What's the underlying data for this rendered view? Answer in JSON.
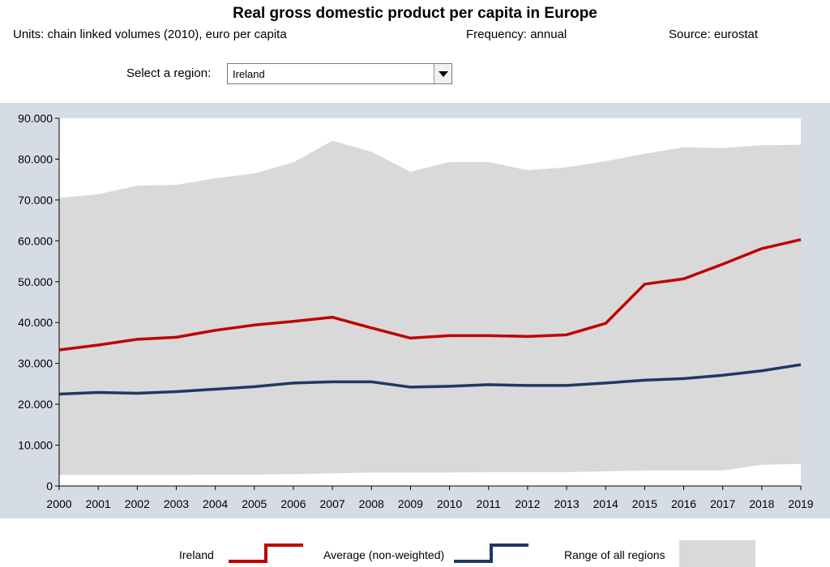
{
  "title": "Real gross domestic product per capita in Europe",
  "meta": {
    "units": "Units: chain linked volumes (2010), euro per capita",
    "frequency": "Frequency: annual",
    "source": "Source: eurostat"
  },
  "selector": {
    "label": "Select a region:",
    "value": "Ireland"
  },
  "colors": {
    "ireland": "#c00000",
    "average": "#203864",
    "range": "#d9d9d9",
    "panel": "#d6dce5"
  },
  "legend": {
    "ireland": "Ireland",
    "average": "Average (non-weighted)",
    "range": "Range of all regions"
  },
  "chart_data": {
    "type": "line",
    "title": "",
    "xlabel": "",
    "ylabel": "",
    "ylim": [
      0,
      90000
    ],
    "y_ticks": [
      "0",
      "10.000",
      "20.000",
      "30.000",
      "40.000",
      "50.000",
      "60.000",
      "70.000",
      "80.000",
      "90.000"
    ],
    "x": [
      "2000",
      "2001",
      "2002",
      "2003",
      "2004",
      "2005",
      "2006",
      "2007",
      "2008",
      "2009",
      "2010",
      "2011",
      "2012",
      "2013",
      "2014",
      "2015",
      "2016",
      "2017",
      "2018",
      "2019"
    ],
    "series": [
      {
        "name": "Ireland",
        "values": [
          33300,
          34500,
          35900,
          36400,
          38100,
          39400,
          40300,
          41300,
          38700,
          36200,
          36800,
          36800,
          36600,
          37000,
          39800,
          49400,
          50700,
          54300,
          58100,
          60300
        ]
      },
      {
        "name": "Average (non-weighted)",
        "values": [
          22500,
          22900,
          22700,
          23100,
          23700,
          24300,
          25200,
          25500,
          25500,
          24200,
          24400,
          24800,
          24600,
          24600,
          25200,
          25900,
          26300,
          27100,
          28200,
          29700
        ]
      }
    ],
    "range": {
      "name": "Range of all regions",
      "max": [
        70500,
        71400,
        73500,
        73700,
        75300,
        76500,
        79200,
        84500,
        81800,
        76900,
        79300,
        79300,
        77300,
        78000,
        79500,
        81300,
        82900,
        82700,
        83400,
        83500
      ],
      "min": [
        2700,
        2700,
        2700,
        2700,
        2800,
        2800,
        2900,
        3100,
        3300,
        3300,
        3300,
        3400,
        3400,
        3400,
        3600,
        3800,
        3800,
        3800,
        5200,
        5400
      ]
    },
    "grid": false,
    "legend_position": "bottom"
  }
}
